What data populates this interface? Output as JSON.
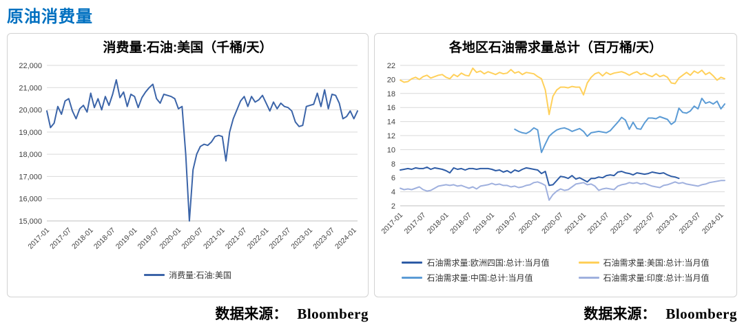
{
  "page_title": "原油消费量",
  "colors": {
    "header_accent": "#0070C0",
    "grid": "#D9D9D9",
    "axis": "#BFBFBF",
    "tick_text": "#404040",
    "left_line": "#3B64A8",
    "europe": "#2E5CA6",
    "us_yellow": "#FFD05A",
    "china": "#5B9BD5",
    "india": "#9FB0DE"
  },
  "sources": [
    {
      "label": "数据来源：",
      "brand": "Bloomberg"
    },
    {
      "label": "数据来源：",
      "brand": "Bloomberg"
    }
  ],
  "chart_data": [
    {
      "type": "line",
      "title": "消费量:石油:美国（千桶/天）",
      "ylabel": "",
      "xlabel": "",
      "ylim": [
        15000,
        22000
      ],
      "ytick_step": 1000,
      "grid": true,
      "legend_position": "bottom",
      "x_tick_every": 6,
      "x": [
        "2017-01",
        "2017-02",
        "2017-03",
        "2017-04",
        "2017-05",
        "2017-06",
        "2017-07",
        "2017-08",
        "2017-09",
        "2017-10",
        "2017-11",
        "2017-12",
        "2018-01",
        "2018-02",
        "2018-03",
        "2018-04",
        "2018-05",
        "2018-06",
        "2018-07",
        "2018-08",
        "2018-09",
        "2018-10",
        "2018-11",
        "2018-12",
        "2019-01",
        "2019-02",
        "2019-03",
        "2019-04",
        "2019-05",
        "2019-06",
        "2019-07",
        "2019-08",
        "2019-09",
        "2019-10",
        "2019-11",
        "2019-12",
        "2020-01",
        "2020-02",
        "2020-03",
        "2020-04",
        "2020-05",
        "2020-06",
        "2020-07",
        "2020-08",
        "2020-09",
        "2020-10",
        "2020-11",
        "2020-12",
        "2021-01",
        "2021-02",
        "2021-03",
        "2021-04",
        "2021-05",
        "2021-06",
        "2021-07",
        "2021-08",
        "2021-09",
        "2021-10",
        "2021-11",
        "2021-12",
        "2022-01",
        "2022-02",
        "2022-03",
        "2022-04",
        "2022-05",
        "2022-06",
        "2022-07",
        "2022-08",
        "2022-09",
        "2022-10",
        "2022-11",
        "2022-12",
        "2023-01",
        "2023-02",
        "2023-03",
        "2023-04",
        "2023-05",
        "2023-06",
        "2023-07",
        "2023-08",
        "2023-09",
        "2023-10",
        "2023-11",
        "2023-12",
        "2024-01",
        "2024-02"
      ],
      "series": [
        {
          "name": "消费量:石油:美国",
          "color": "#3B64A8",
          "values": [
            19950,
            19200,
            19400,
            20150,
            19800,
            20400,
            20500,
            19950,
            19600,
            20050,
            20200,
            19900,
            20750,
            20100,
            20500,
            20000,
            20600,
            20200,
            20700,
            21350,
            20550,
            20800,
            20150,
            20700,
            20600,
            20100,
            20550,
            20800,
            21000,
            21150,
            20500,
            20300,
            20700,
            20650,
            20600,
            20500,
            20050,
            20150,
            18000,
            15000,
            17300,
            18000,
            18350,
            18450,
            18400,
            18550,
            18800,
            18850,
            18800,
            17700,
            19000,
            19600,
            20000,
            20400,
            20600,
            20150,
            20600,
            20350,
            20450,
            20650,
            20300,
            19950,
            20350,
            20050,
            20300,
            20150,
            20100,
            19950,
            19450,
            19250,
            19300,
            20150,
            20200,
            20250,
            20750,
            20150,
            20900,
            20050,
            20700,
            20650,
            20300,
            19600,
            19700,
            19950,
            19600,
            19950
          ]
        }
      ]
    },
    {
      "type": "line",
      "title": "各地区石油需求量总计（百万桶/天）",
      "ylabel": "",
      "xlabel": "",
      "ylim": [
        2,
        22
      ],
      "ytick_step": 2,
      "grid": true,
      "legend_position": "bottom",
      "x_tick_every": 6,
      "x": [
        "2017-01",
        "2017-02",
        "2017-03",
        "2017-04",
        "2017-05",
        "2017-06",
        "2017-07",
        "2017-08",
        "2017-09",
        "2017-10",
        "2017-11",
        "2017-12",
        "2018-01",
        "2018-02",
        "2018-03",
        "2018-04",
        "2018-05",
        "2018-06",
        "2018-07",
        "2018-08",
        "2018-09",
        "2018-10",
        "2018-11",
        "2018-12",
        "2019-01",
        "2019-02",
        "2019-03",
        "2019-04",
        "2019-05",
        "2019-06",
        "2019-07",
        "2019-08",
        "2019-09",
        "2019-10",
        "2019-11",
        "2019-12",
        "2020-01",
        "2020-02",
        "2020-03",
        "2020-04",
        "2020-05",
        "2020-06",
        "2020-07",
        "2020-08",
        "2020-09",
        "2020-10",
        "2020-11",
        "2020-12",
        "2021-01",
        "2021-02",
        "2021-03",
        "2021-04",
        "2021-05",
        "2021-06",
        "2021-07",
        "2021-08",
        "2021-09",
        "2021-10",
        "2021-11",
        "2021-12",
        "2022-01",
        "2022-02",
        "2022-03",
        "2022-04",
        "2022-05",
        "2022-06",
        "2022-07",
        "2022-08",
        "2022-09",
        "2022-10",
        "2022-11",
        "2022-12",
        "2023-01",
        "2023-02",
        "2023-03",
        "2023-04",
        "2023-05",
        "2023-06",
        "2023-07",
        "2023-08",
        "2023-09",
        "2023-10",
        "2023-11",
        "2023-12",
        "2024-01",
        "2024-02"
      ],
      "series": [
        {
          "name": "石油需求量:欧洲四国:总计:当月值",
          "color": "#2E5CA6",
          "values": [
            7.1,
            7.2,
            7.3,
            7.2,
            7.4,
            7.3,
            7.3,
            7.5,
            7.2,
            7.4,
            7.3,
            7.2,
            7.0,
            6.7,
            7.4,
            7.2,
            7.3,
            7.1,
            7.3,
            7.3,
            7.2,
            7.3,
            7.3,
            7.3,
            7.2,
            7.0,
            7.1,
            6.8,
            7.0,
            6.7,
            7.1,
            6.9,
            7.2,
            7.4,
            7.3,
            7.2,
            7.1,
            6.6,
            6.9,
            4.9,
            5.0,
            5.6,
            6.2,
            6.1,
            5.9,
            6.3,
            5.8,
            6.0,
            5.7,
            5.4,
            5.9,
            5.9,
            6.1,
            6.0,
            6.3,
            6.4,
            6.3,
            6.8,
            6.9,
            6.7,
            6.6,
            6.4,
            6.7,
            6.6,
            6.5,
            6.6,
            6.8,
            6.7,
            6.6,
            6.7,
            6.4,
            6.2,
            6.1,
            5.9,
            null,
            null,
            null,
            null,
            null,
            null,
            null,
            null,
            null,
            null,
            null,
            null
          ]
        },
        {
          "name": "石油需求量:美国:总计:当月值",
          "color": "#FFD05A",
          "values": [
            19.9,
            19.6,
            19.7,
            20.1,
            20.3,
            20.0,
            20.4,
            20.6,
            20.2,
            20.4,
            20.6,
            20.7,
            20.3,
            20.1,
            20.7,
            20.4,
            20.9,
            20.6,
            20.5,
            21.6,
            21.0,
            21.2,
            20.8,
            21.1,
            20.9,
            20.7,
            21.0,
            20.8,
            20.9,
            21.4,
            20.9,
            21.1,
            20.7,
            21.0,
            20.9,
            20.8,
            20.4,
            20.1,
            18.5,
            15.0,
            17.6,
            18.5,
            18.9,
            18.9,
            18.8,
            19.0,
            18.9,
            18.9,
            17.8,
            19.5,
            20.3,
            20.8,
            21.0,
            20.5,
            21.0,
            20.7,
            20.9,
            21.0,
            21.1,
            20.9,
            20.6,
            20.9,
            21.1,
            20.7,
            20.9,
            20.6,
            20.4,
            20.8,
            20.4,
            20.6,
            20.3,
            19.5,
            19.4,
            20.2,
            20.6,
            21.0,
            20.6,
            21.2,
            20.9,
            21.3,
            20.7,
            21.0,
            20.5,
            19.9,
            20.3,
            20.1
          ]
        },
        {
          "name": "石油需求量:中国:总计:当月值",
          "color": "#5B9BD5",
          "values": [
            null,
            null,
            null,
            null,
            null,
            null,
            null,
            null,
            null,
            null,
            null,
            null,
            null,
            null,
            null,
            null,
            null,
            null,
            null,
            null,
            null,
            null,
            null,
            null,
            null,
            null,
            null,
            null,
            null,
            null,
            12.9,
            12.6,
            12.4,
            12.3,
            12.6,
            13.1,
            12.8,
            9.6,
            10.8,
            11.9,
            12.4,
            12.8,
            13.0,
            13.1,
            12.9,
            12.6,
            12.8,
            13.0,
            12.6,
            11.9,
            12.4,
            12.5,
            12.6,
            12.5,
            12.4,
            12.7,
            13.3,
            13.9,
            14.6,
            14.2,
            12.9,
            13.9,
            13.0,
            12.9,
            13.8,
            14.5,
            14.5,
            14.4,
            14.7,
            14.5,
            14.3,
            13.6,
            14.0,
            15.9,
            15.3,
            15.2,
            15.5,
            16.2,
            15.8,
            17.3,
            16.6,
            16.8,
            16.5,
            16.9,
            15.8,
            16.5
          ]
        },
        {
          "name": "石油需求量:印度:总计:当月值",
          "color": "#9FB0DE",
          "values": [
            4.5,
            4.3,
            4.4,
            4.3,
            4.5,
            4.7,
            4.3,
            4.1,
            4.2,
            4.5,
            4.8,
            4.9,
            5.0,
            4.9,
            5.0,
            4.8,
            4.9,
            4.7,
            4.5,
            4.7,
            4.4,
            4.8,
            4.9,
            5.0,
            5.2,
            5.0,
            5.1,
            4.9,
            4.9,
            4.7,
            4.8,
            4.6,
            4.7,
            4.9,
            5.0,
            5.3,
            5.4,
            5.2,
            4.9,
            2.8,
            3.6,
            4.1,
            4.4,
            4.2,
            4.3,
            4.7,
            5.1,
            5.2,
            5.3,
            5.0,
            5.1,
            4.8,
            4.2,
            4.4,
            4.5,
            4.4,
            4.3,
            4.8,
            5.0,
            5.1,
            5.3,
            5.2,
            5.3,
            5.1,
            5.2,
            5.0,
            4.8,
            4.7,
            4.6,
            4.9,
            5.0,
            5.2,
            5.4,
            5.2,
            5.3,
            5.1,
            5.0,
            4.9,
            4.8,
            5.0,
            5.1,
            5.3,
            5.4,
            5.5,
            5.6,
            5.6
          ]
        }
      ]
    }
  ]
}
